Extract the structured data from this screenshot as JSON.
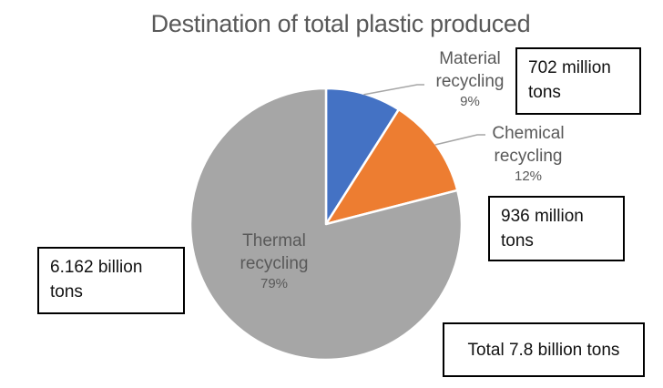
{
  "title": "Destination of total plastic produced",
  "chart_data": {
    "type": "pie",
    "title": "Destination of total plastic produced",
    "start_angle_deg": 0,
    "direction": "clockwise",
    "legend": "none",
    "categories": [
      "Material recycling",
      "Chemical recycling",
      "Thermal recycling"
    ],
    "values": [
      9,
      12,
      79
    ],
    "unit": "%",
    "slices": [
      {
        "label": "Material recycling",
        "value": 9,
        "pct_label": "9%",
        "color": "#4472C4",
        "callout": "702 million tons"
      },
      {
        "label": "Chemical recycling",
        "value": 12,
        "pct_label": "12%",
        "color": "#ED7D31",
        "callout": "936 million tons"
      },
      {
        "label": "Thermal recycling",
        "value": 79,
        "pct_label": "79%",
        "color": "#A6A6A6",
        "callout": "6.162 billion tons"
      }
    ],
    "total_label": "Total 7.8 billion tons"
  },
  "colors": {
    "title_text": "#595959",
    "label_text": "#595959",
    "leader_line": "#A6A6A6",
    "slice_border": "#FFFFFF",
    "box_border": "#000000",
    "box_text": "#111111",
    "background": "#FFFFFF"
  }
}
